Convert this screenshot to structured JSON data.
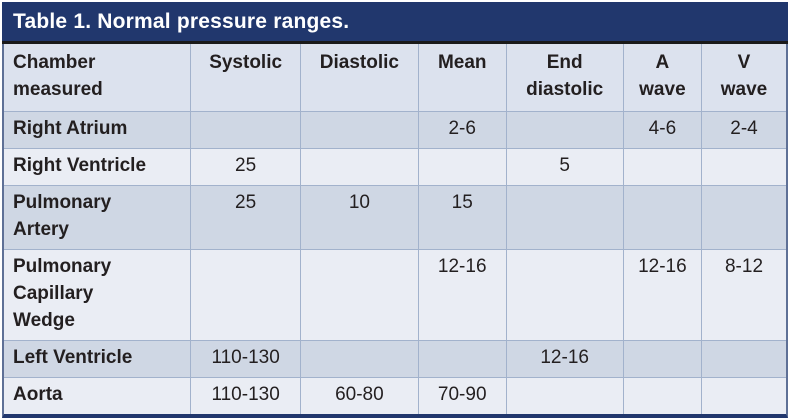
{
  "title": "Table 1. Normal pressure ranges.",
  "colors": {
    "title_bar_bg": "#21376D",
    "title_text": "#FFFFFF",
    "title_divider": "#1A1A1A",
    "header_row_bg": "#DCE2EE",
    "row_dark_bg": "#CFD7E4",
    "row_light_bg": "#EAEDF4",
    "grid_line": "#A2B2CC",
    "outer_side_border": "#5E7096",
    "bottom_border": "#21376D",
    "cell_text": "#231F20"
  },
  "chart_data": {
    "type": "table",
    "title": "Table 1. Normal pressure ranges.",
    "columns": [
      "Chamber\nmeasured",
      "Systolic",
      "Diastolic",
      "Mean",
      "End\ndiastolic",
      "A\nwave",
      "V\nwave"
    ],
    "rows": [
      {
        "chamber": "Right Atrium",
        "values": [
          "",
          "",
          "2-6",
          "",
          "4-6",
          "2-4"
        ]
      },
      {
        "chamber": "Right Ventricle",
        "values": [
          "25",
          "",
          "",
          "5",
          "",
          ""
        ]
      },
      {
        "chamber": "Pulmonary\nArtery",
        "values": [
          "25",
          "10",
          "15",
          "",
          "",
          ""
        ]
      },
      {
        "chamber": "Pulmonary\nCapillary\nWedge",
        "values": [
          "",
          "",
          "12-16",
          "",
          "12-16",
          "8-12"
        ]
      },
      {
        "chamber": "Left Ventricle",
        "values": [
          "110-130",
          "",
          "",
          "12-16",
          "",
          ""
        ]
      },
      {
        "chamber": "Aorta",
        "values": [
          "110-130",
          "60-80",
          "70-90",
          "",
          "",
          ""
        ]
      }
    ]
  }
}
